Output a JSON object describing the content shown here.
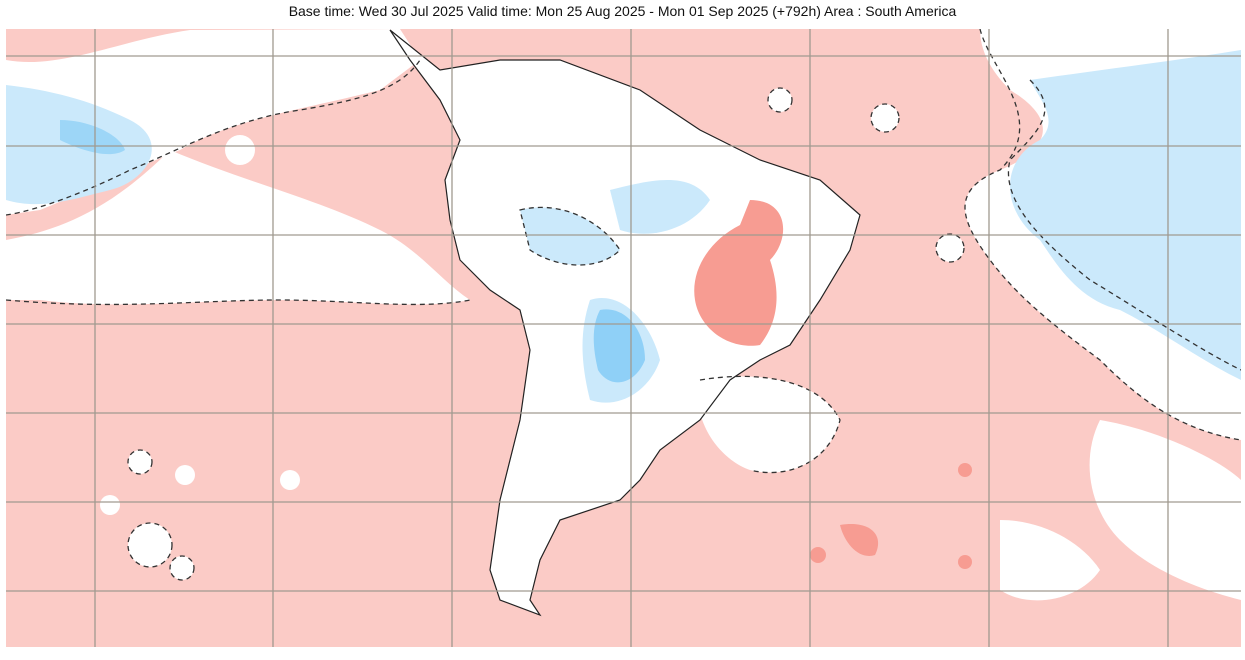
{
  "header": {
    "title": "Base time: Wed 30 Jul 2025 Valid time: Mon 25 Aug 2025 - Mon 01 Sep 2025 (+792h) Area : South America"
  }
}
